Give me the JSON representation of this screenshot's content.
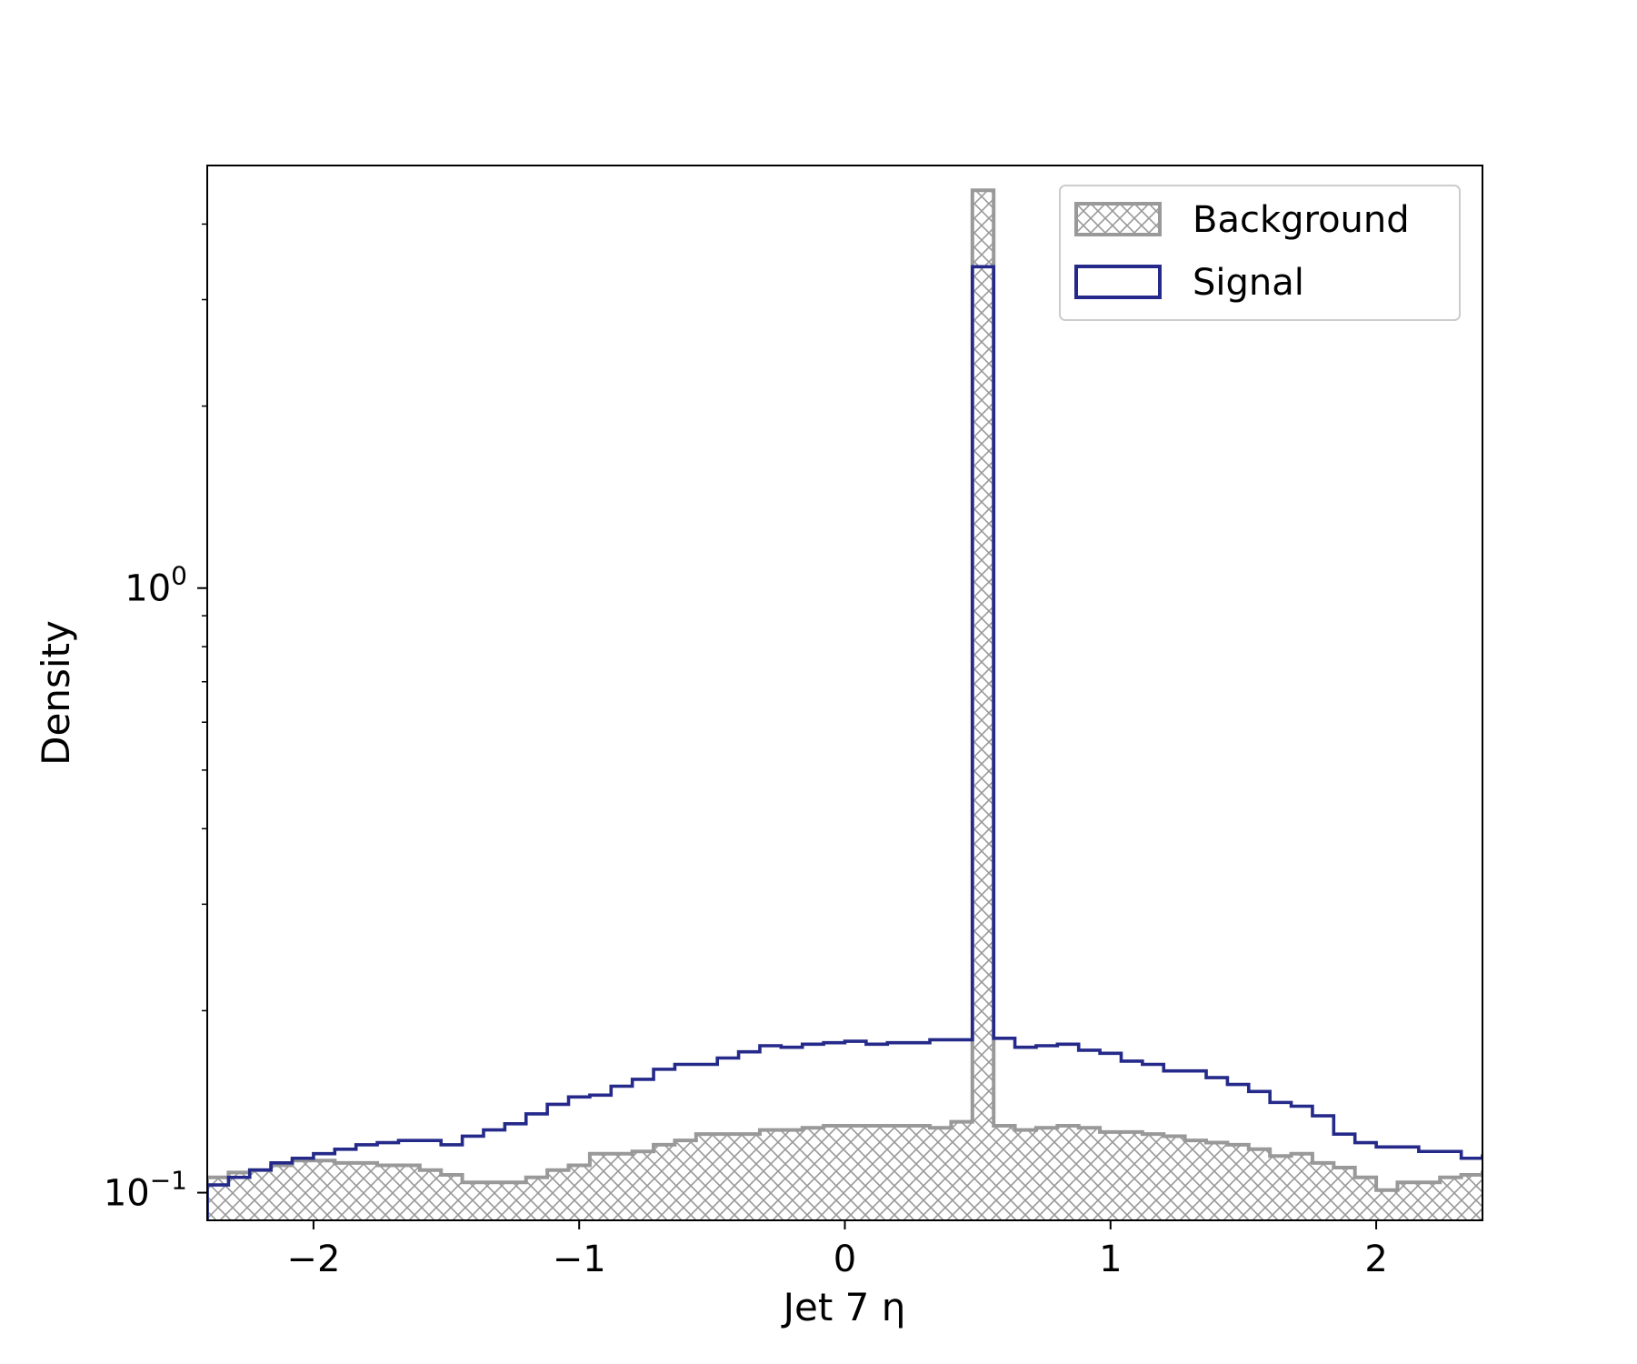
{
  "chart_data": {
    "type": "histogram",
    "xlabel": "Jet 7 η",
    "ylabel": "Density",
    "xlim": [
      -2.4,
      2.4
    ],
    "ylim": [
      0.09,
      5.0
    ],
    "y_scale": "log",
    "x_ticks": [
      -2,
      -1,
      0,
      1,
      2
    ],
    "x_tick_labels": [
      "−2",
      "−1",
      "0",
      "1",
      "2"
    ],
    "y_ticks": [
      {
        "base": "10",
        "exp": "0",
        "value": 1.0
      },
      {
        "base": "10",
        "exp": "−1",
        "value": 0.1
      }
    ],
    "legend": {
      "position": "upper right",
      "entries": [
        "Background",
        "Signal"
      ]
    },
    "bin_edges_start": -2.4,
    "bin_width": 0.08,
    "series": [
      {
        "name": "Background",
        "style": "hatched-fill",
        "color": "#999999",
        "values": [
          0.106,
          0.108,
          0.109,
          0.111,
          0.113,
          0.113,
          0.112,
          0.112,
          0.111,
          0.111,
          0.109,
          0.107,
          0.104,
          0.104,
          0.104,
          0.106,
          0.109,
          0.111,
          0.116,
          0.116,
          0.117,
          0.12,
          0.122,
          0.125,
          0.125,
          0.125,
          0.127,
          0.127,
          0.128,
          0.129,
          0.129,
          0.129,
          0.129,
          0.129,
          0.128,
          0.131,
          4.55,
          0.129,
          0.127,
          0.128,
          0.129,
          0.128,
          0.126,
          0.126,
          0.125,
          0.124,
          0.122,
          0.121,
          0.12,
          0.118,
          0.115,
          0.116,
          0.112,
          0.11,
          0.106,
          0.101,
          0.104,
          0.104,
          0.106,
          0.107,
          0.108,
          0.111,
          0.112,
          0.112,
          0.113,
          0.111,
          0.109,
          0.107,
          0.105,
          0.107,
          0.104,
          0.1
        ]
      },
      {
        "name": "Signal",
        "style": "step-outline",
        "color": "#252a8a",
        "values": [
          0.103,
          0.106,
          0.109,
          0.112,
          0.114,
          0.116,
          0.118,
          0.12,
          0.121,
          0.122,
          0.122,
          0.12,
          0.124,
          0.127,
          0.13,
          0.135,
          0.14,
          0.144,
          0.145,
          0.15,
          0.154,
          0.16,
          0.163,
          0.163,
          0.167,
          0.171,
          0.175,
          0.174,
          0.176,
          0.177,
          0.178,
          0.176,
          0.177,
          0.177,
          0.179,
          0.179,
          3.4,
          0.18,
          0.174,
          0.175,
          0.176,
          0.172,
          0.17,
          0.165,
          0.163,
          0.159,
          0.159,
          0.155,
          0.151,
          0.147,
          0.141,
          0.139,
          0.134,
          0.125,
          0.121,
          0.119,
          0.119,
          0.117,
          0.117,
          0.114,
          0.115,
          0.116,
          0.115,
          0.112,
          0.112,
          0.108,
          0.11,
          0.106,
          0.103,
          0.106,
          0.102,
          0.101
        ]
      }
    ]
  }
}
